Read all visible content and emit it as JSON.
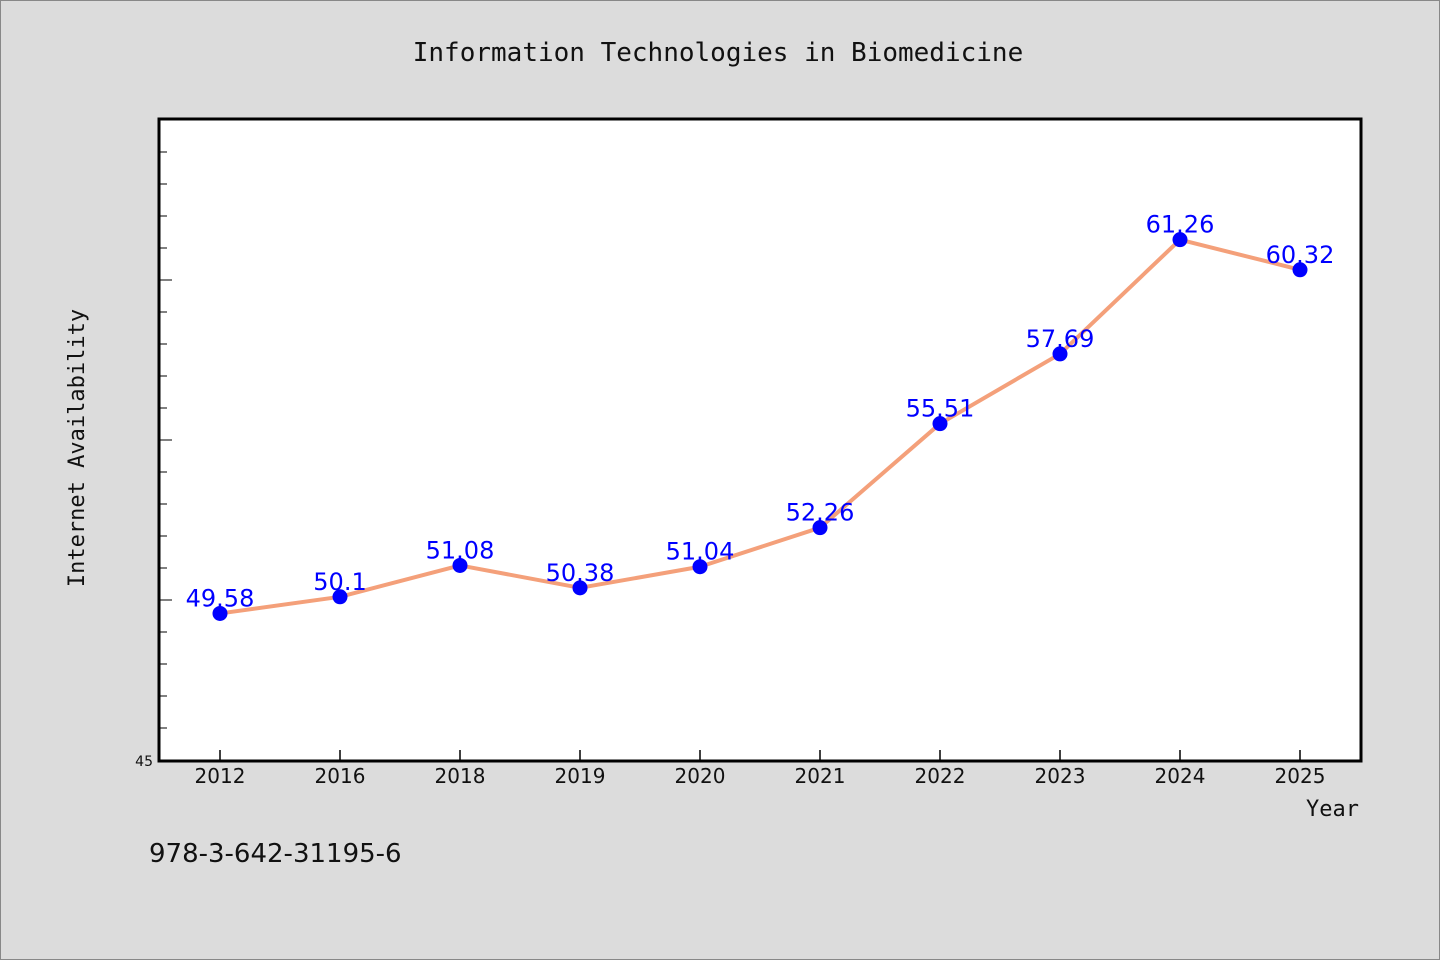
{
  "colors": {
    "background": "#dcdcdc",
    "plot_background": "#ffffff",
    "line": "#f4a07a",
    "marker": "#0000ff",
    "data_label": "#0000ff"
  },
  "footer_text": "978-3-642-31195-6",
  "chart_data": {
    "type": "line",
    "title": "Information Technologies in Biomedicine",
    "xlabel": "Year",
    "ylabel": "Internet Availability",
    "categories": [
      "2012",
      "2016",
      "2018",
      "2019",
      "2020",
      "2021",
      "2022",
      "2023",
      "2024",
      "2025"
    ],
    "series": [
      {
        "values": [
          49.58,
          50.1,
          51.08,
          50.38,
          51.04,
          52.26,
          55.51,
          57.69,
          61.26,
          60.32
        ]
      }
    ],
    "data_labels": [
      "49.58",
      "50.1",
      "51.08",
      "50.38",
      "51.04",
      "52.26",
      "55.51",
      "57.69",
      "61.26",
      "60.32"
    ],
    "y_tick_labels": [
      "45"
    ],
    "ylim": [
      45,
      65
    ],
    "grid": false,
    "legend": "none"
  }
}
